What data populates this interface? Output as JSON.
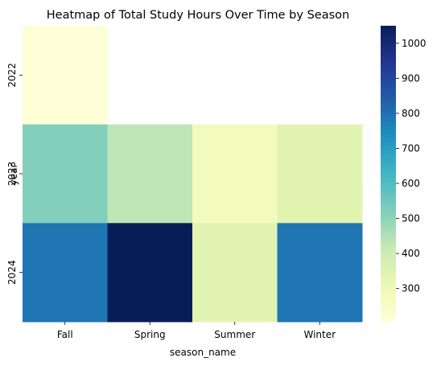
{
  "chart_data": {
    "type": "heatmap",
    "title": "Heatmap of Total Study Hours Over Time by Season",
    "xlabel": "season_name",
    "ylabel": "year",
    "x_categories": [
      "Fall",
      "Spring",
      "Summer",
      "Winter"
    ],
    "y_categories": [
      "2022",
      "2023",
      "2024"
    ],
    "values": [
      [
        210,
        null,
        null,
        null
      ],
      [
        515,
        430,
        275,
        340
      ],
      [
        790,
        1050,
        345,
        790
      ]
    ],
    "colormap": "YlGnBu",
    "colorbar": {
      "range": [
        205,
        1050
      ],
      "ticks": [
        300,
        400,
        500,
        600,
        700,
        800,
        900,
        1000
      ]
    }
  }
}
